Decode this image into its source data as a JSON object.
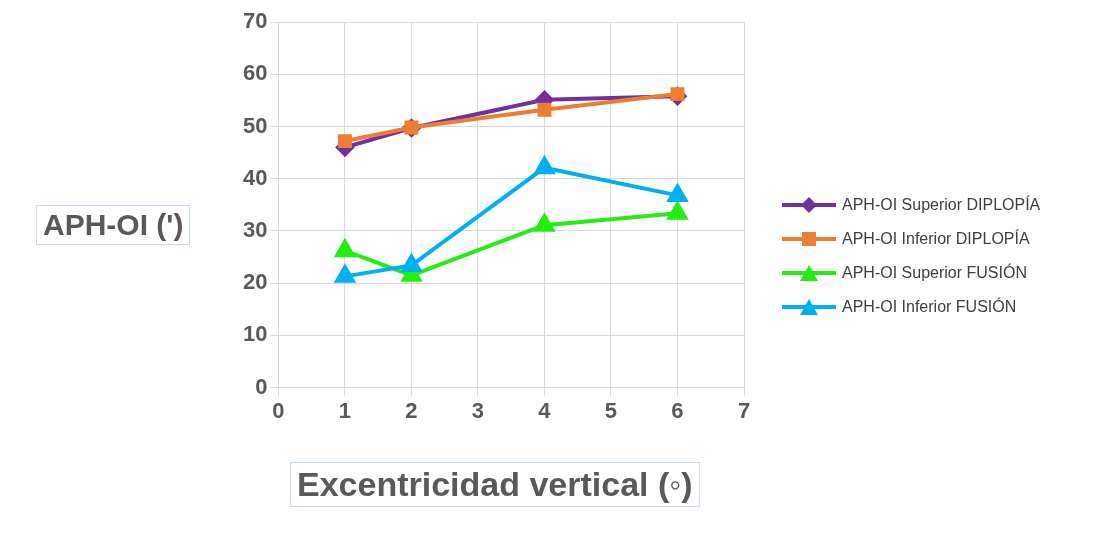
{
  "chart_data": {
    "type": "line",
    "xlabel": "Excentricidad vertical (◦)",
    "ylabel": "APH-OI (')",
    "x": [
      1,
      2,
      4,
      6
    ],
    "xlim": [
      0,
      7
    ],
    "xticks": [
      0,
      1,
      2,
      3,
      4,
      5,
      6,
      7
    ],
    "ylim": [
      0,
      70
    ],
    "yticks": [
      0,
      10,
      20,
      30,
      40,
      50,
      60,
      70
    ],
    "grid": true,
    "legend": "right",
    "series": [
      {
        "name": "APH-OI Superior DIPLOPÍA",
        "color": "#7030a0",
        "marker": "diamond",
        "values": [
          46.0,
          49.7,
          55.1,
          55.8
        ]
      },
      {
        "name": "APH-OI Inferior DIPLOPÍA",
        "color": "#ed7d31",
        "marker": "square",
        "values": [
          47.2,
          49.8,
          53.2,
          56.2
        ]
      },
      {
        "name": "APH-OI Superior FUSIÓN",
        "color": "#22ee11",
        "marker": "triangle",
        "values": [
          26.2,
          21.5,
          31.1,
          33.4
        ]
      },
      {
        "name": "APH-OI Inferior FUSIÓN",
        "color": "#00b0f0",
        "marker": "triangle",
        "values": [
          21.3,
          23.4,
          42.1,
          36.8
        ]
      }
    ]
  }
}
